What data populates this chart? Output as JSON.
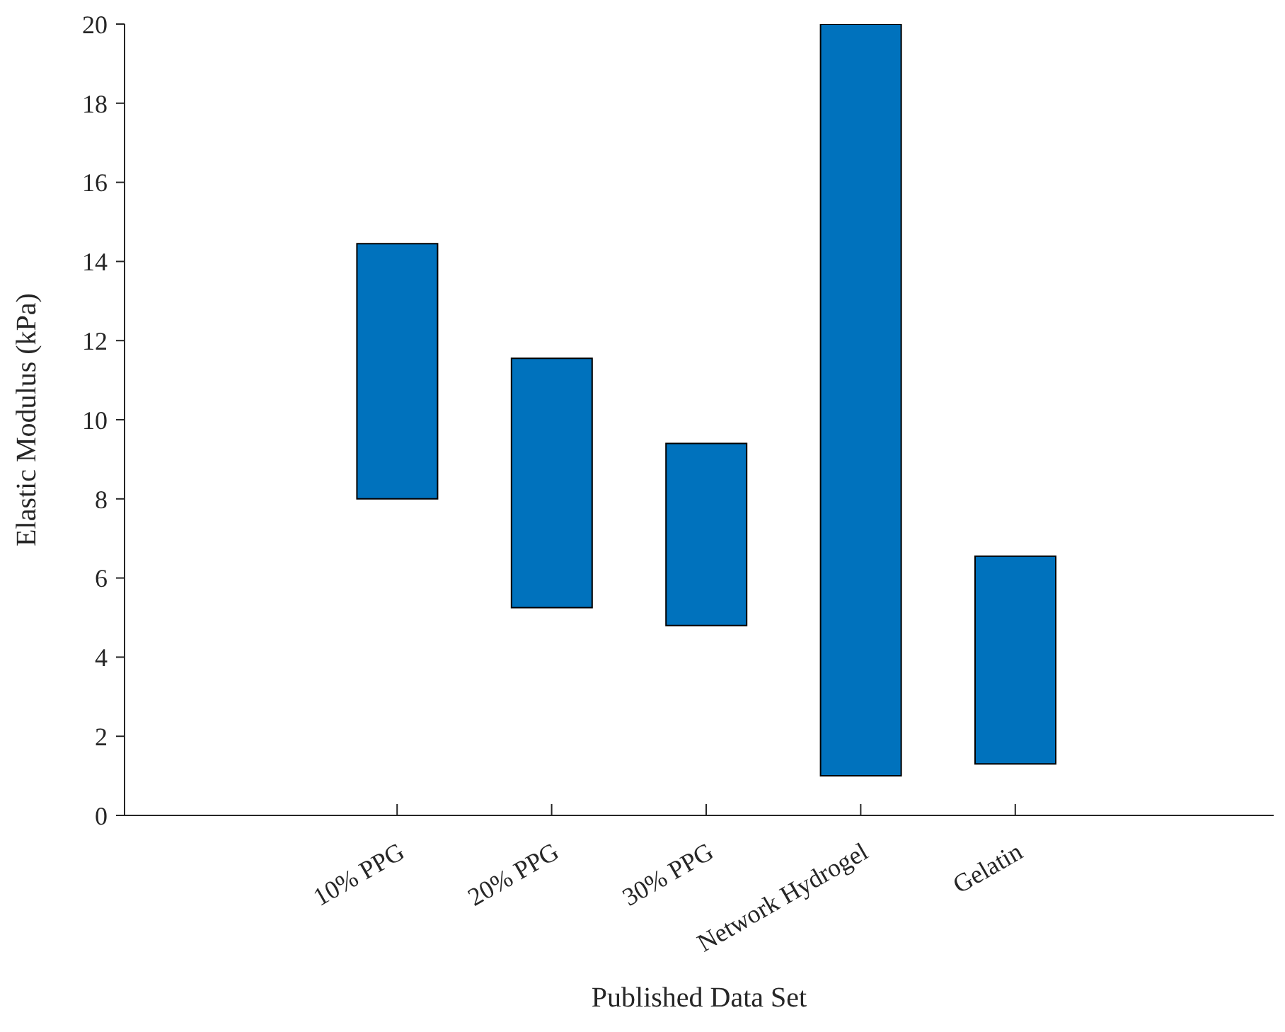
{
  "chart_data": {
    "type": "bar",
    "xlabel": "Published Data Set",
    "ylabel": "Elastic Modulus (kPa)",
    "categories": [
      "10% PPG",
      "20% PPG",
      "30% PPG",
      "Network Hydrogel",
      "Gelatin"
    ],
    "base": [
      8,
      5.25,
      4.8,
      1,
      1.3
    ],
    "values": [
      6.45,
      6.3,
      4.6,
      19,
      5.25
    ],
    "color": "#0072bd",
    "ylim": [
      0,
      20
    ],
    "yticks": [
      0,
      2,
      4,
      6,
      8,
      10,
      12,
      14,
      16,
      18,
      20
    ]
  }
}
